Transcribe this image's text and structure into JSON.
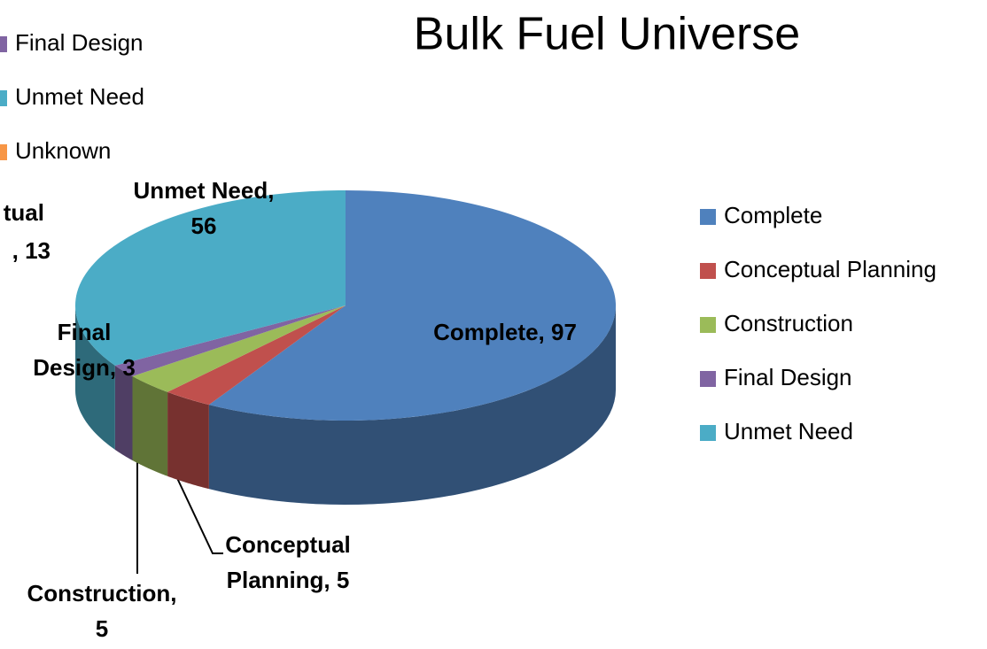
{
  "chart_data": {
    "type": "pie",
    "title": "Bulk Fuel Universe",
    "categories": [
      "Complete",
      "Conceptual Planning",
      "Construction",
      "Final Design",
      "Unmet Need"
    ],
    "values": [
      97,
      5,
      5,
      3,
      56
    ],
    "value_labels": [
      "Complete, 97",
      "Conceptual Planning, 5",
      "Construction, 5",
      "Final Design, 3",
      "Unmet Need, 56"
    ],
    "colors": [
      "#4f81bd",
      "#c0504d",
      "#9bbb59",
      "#8064a2",
      "#4bacc6"
    ],
    "legend": "right"
  },
  "overlay": {
    "legend": [
      "Final Design",
      "Unmet Need",
      "Unknown"
    ],
    "colors": [
      "#8064a2",
      "#4bacc6",
      "#f79646"
    ],
    "label_fragments": [
      "tual",
      ", 13"
    ]
  }
}
